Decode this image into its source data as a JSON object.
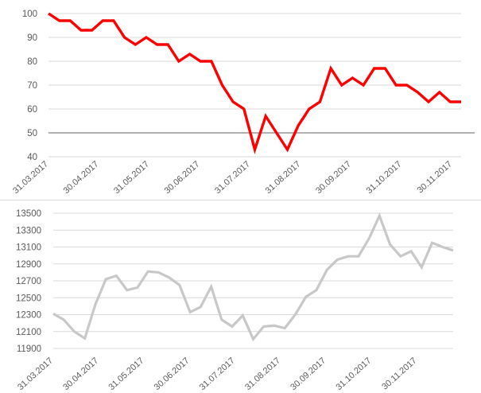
{
  "colors": {
    "top_line": "#ff0000",
    "bottom_line": "#c8c8c8",
    "grid": "#d9d9d9",
    "reference_line": "#808080",
    "axis_text": "#595959"
  },
  "chart_data": [
    {
      "type": "line",
      "x_labels": [
        "31.03.2017",
        "30.04.2017",
        "31.05.2017",
        "30.06.2017",
        "31.07.2017",
        "31.08.2017",
        "30.09.2017",
        "31.10.2017",
        "30.11.2017"
      ],
      "ylim": [
        40,
        100
      ],
      "y_ticks": [
        "100",
        "90",
        "80",
        "70",
        "60",
        "50",
        "40"
      ],
      "reference_line": 50,
      "grid": true,
      "series": [
        {
          "values": [
            100,
            97,
            97,
            93,
            93,
            97,
            97,
            90,
            87,
            90,
            87,
            87,
            80,
            83,
            80,
            80,
            70,
            63,
            60,
            43,
            57,
            50,
            43,
            53,
            60,
            63,
            77,
            70,
            73,
            70,
            77,
            77,
            70,
            70,
            67,
            63,
            67,
            63,
            63
          ]
        }
      ]
    },
    {
      "type": "line",
      "x_labels": [
        "31.03.2017",
        "30.04.2017",
        "31.05.2017",
        "30.06.2017",
        "31.07.2017",
        "31.08.2017",
        "30.09.2017",
        "31.10.2017",
        "30.11.2017"
      ],
      "ylim": [
        11900,
        13500
      ],
      "y_ticks": [
        "13500",
        "13300",
        "13100",
        "12900",
        "12700",
        "12500",
        "12300",
        "12100",
        "11900"
      ],
      "grid": true,
      "series": [
        {
          "values": [
            12310,
            12240,
            12100,
            12020,
            12420,
            12720,
            12760,
            12590,
            12620,
            12810,
            12800,
            12740,
            12650,
            12330,
            12390,
            12630,
            12240,
            12160,
            12290,
            12010,
            12160,
            12170,
            12140,
            12300,
            12510,
            12590,
            12830,
            12950,
            12990,
            12990,
            13200,
            13470,
            13130,
            12990,
            13050,
            12860,
            13150,
            13100,
            13060
          ]
        }
      ]
    }
  ]
}
